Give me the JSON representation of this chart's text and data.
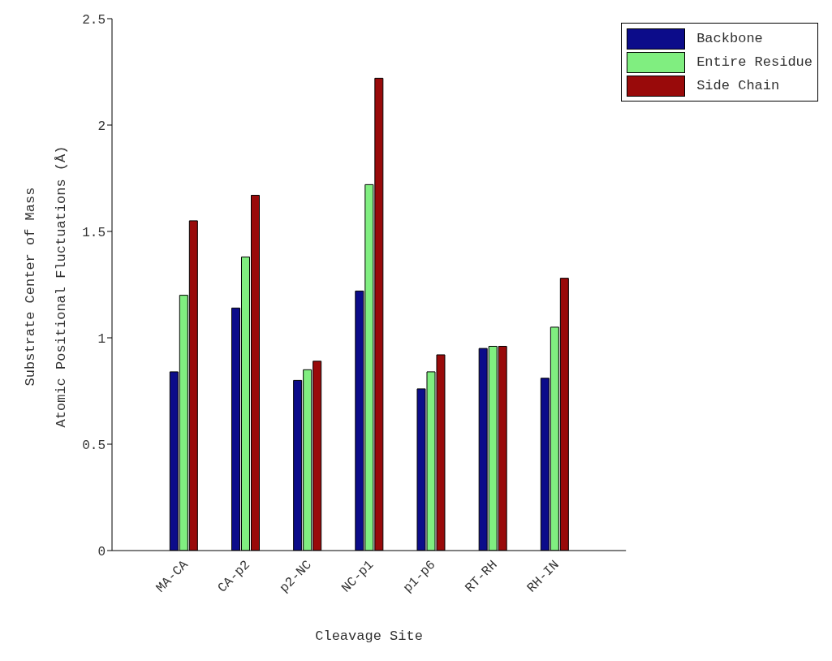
{
  "chart_data": {
    "type": "bar",
    "xlabel": "Cleavage Site",
    "ylabel": "Substrate Center of Mass\nAtomic Positional Fluctuations (Å)",
    "categories": [
      "MA-CA",
      "CA-p2",
      "p2-NC",
      "NC-p1",
      "p1-p6",
      "RT-RH",
      "RH-IN"
    ],
    "series": [
      {
        "name": "Backbone",
        "color": "#0c0c8a",
        "values": [
          0.84,
          1.14,
          0.8,
          1.22,
          0.76,
          0.95,
          0.81
        ]
      },
      {
        "name": "Entire Residue",
        "color": "#80ee80",
        "values": [
          1.2,
          1.38,
          0.85,
          1.72,
          0.84,
          0.96,
          1.05
        ]
      },
      {
        "name": "Side Chain",
        "color": "#990a0a",
        "values": [
          1.55,
          1.67,
          0.89,
          2.22,
          0.92,
          0.96,
          1.28
        ]
      }
    ],
    "ylim": [
      0,
      2.5
    ],
    "yticks": [
      0,
      0.5,
      1,
      1.5,
      2,
      2.5
    ],
    "grid": false,
    "legend": "top right"
  }
}
